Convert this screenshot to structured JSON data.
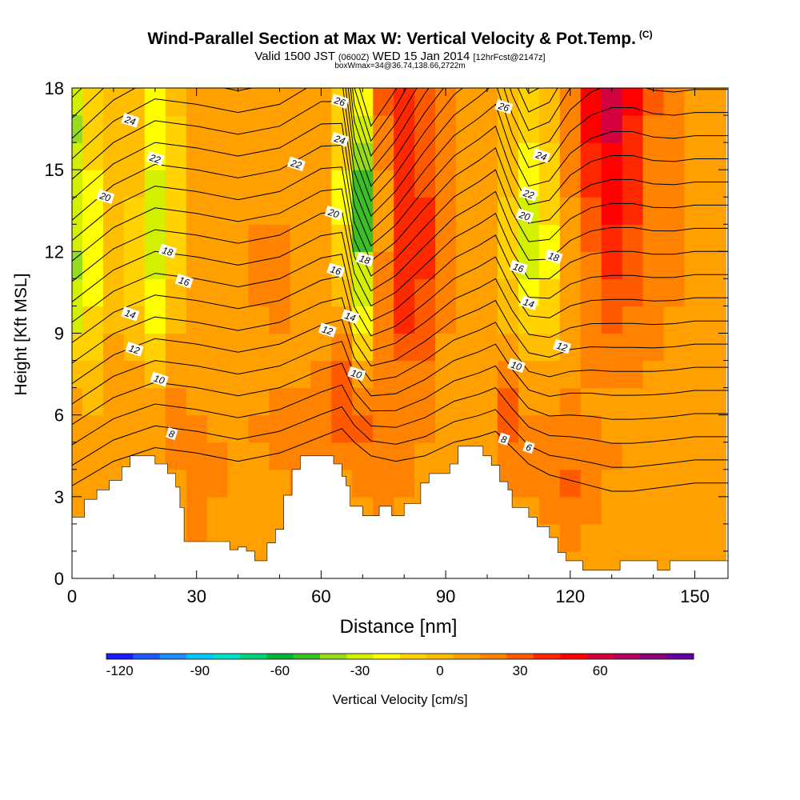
{
  "header": {
    "title": "Wind-Parallel Section at Max W: Vertical Velocity & Pot.Temp.",
    "title_tag": "(C)",
    "subtitle_main": "Valid 1500 JST",
    "subtitle_utc": "(0600Z)",
    "subtitle_date": "WED 15 Jan 2014",
    "subtitle_fcst": "[12hrFcst@2147z]",
    "subtitle2": "boxWmax=34@36.74,138.66,2722m"
  },
  "chart_data": {
    "type": "heatmap",
    "title": "Wind-Parallel Section at Max W: Vertical Velocity & Pot.Temp.",
    "xlabel": "Distance [nm]",
    "ylabel": "Height [Kft MSL]",
    "xlim": [
      0,
      158
    ],
    "ylim": [
      0,
      18
    ],
    "x_ticks": [
      0,
      30,
      60,
      90,
      120,
      150
    ],
    "x_tick_labels": [
      "0",
      "30",
      "60",
      "90",
      "120",
      "150"
    ],
    "y_ticks": [
      0,
      3,
      6,
      9,
      12,
      15,
      18
    ],
    "y_tick_labels": [
      "0",
      "3",
      "6",
      "9",
      "12",
      "15",
      "18"
    ],
    "colorbar": {
      "label": "Vertical Velocity [cm/s]",
      "min": -125,
      "step": 10,
      "tick_labels": [
        "-120",
        "-90",
        "-60",
        "-30",
        "0",
        "30",
        "60"
      ],
      "tick_values": [
        -120,
        -90,
        -60,
        -30,
        0,
        30,
        60
      ],
      "colors": [
        "#1a1aff",
        "#1e5aff",
        "#1e90ff",
        "#00c8ff",
        "#00e0c8",
        "#00d27a",
        "#00b43c",
        "#3cbe28",
        "#96dc1e",
        "#d2f000",
        "#ffff00",
        "#ffd200",
        "#ffbe00",
        "#ffa000",
        "#ff8200",
        "#ff5a00",
        "#ff2800",
        "#ff0000",
        "#d2003c",
        "#b4005a",
        "#8c0078",
        "#6400a0"
      ]
    },
    "terrain_kft": [
      [
        0,
        2.25
      ],
      [
        3,
        2.25
      ],
      [
        3,
        2.9
      ],
      [
        6,
        2.9
      ],
      [
        6,
        3.25
      ],
      [
        9,
        3.25
      ],
      [
        9,
        3.6
      ],
      [
        12,
        3.6
      ],
      [
        12,
        4.1
      ],
      [
        14,
        4.1
      ],
      [
        14,
        4.5
      ],
      [
        20,
        4.5
      ],
      [
        20,
        4.2
      ],
      [
        23,
        4.2
      ],
      [
        23,
        3.85
      ],
      [
        25,
        3.85
      ],
      [
        25,
        3.35
      ],
      [
        26,
        3.35
      ],
      [
        26,
        2.6
      ],
      [
        27,
        2.6
      ],
      [
        27,
        1.35
      ],
      [
        38,
        1.35
      ],
      [
        38,
        1.05
      ],
      [
        40,
        1.05
      ],
      [
        40,
        1.15
      ],
      [
        42,
        1.15
      ],
      [
        42,
        1.0
      ],
      [
        44,
        1.0
      ],
      [
        44,
        0.65
      ],
      [
        47,
        0.65
      ],
      [
        47,
        1.3
      ],
      [
        49,
        1.3
      ],
      [
        49,
        1.8
      ],
      [
        51,
        1.8
      ],
      [
        51,
        3.05
      ],
      [
        53,
        3.05
      ],
      [
        53,
        4.0
      ],
      [
        55,
        4.0
      ],
      [
        55,
        4.5
      ],
      [
        63,
        4.5
      ],
      [
        63,
        4.2
      ],
      [
        65,
        4.2
      ],
      [
        65,
        3.75
      ],
      [
        66,
        3.75
      ],
      [
        66,
        3.4
      ],
      [
        67,
        3.4
      ],
      [
        67,
        2.65
      ],
      [
        70,
        2.65
      ],
      [
        70,
        2.3
      ],
      [
        74,
        2.3
      ],
      [
        74,
        2.65
      ],
      [
        77,
        2.65
      ],
      [
        77,
        2.3
      ],
      [
        80,
        2.3
      ],
      [
        80,
        2.75
      ],
      [
        84,
        2.75
      ],
      [
        84,
        3.5
      ],
      [
        86,
        3.5
      ],
      [
        86,
        3.85
      ],
      [
        91,
        3.85
      ],
      [
        91,
        4.2
      ],
      [
        93,
        4.2
      ],
      [
        93,
        4.85
      ],
      [
        99,
        4.85
      ],
      [
        99,
        4.5
      ],
      [
        101,
        4.5
      ],
      [
        101,
        4.15
      ],
      [
        103,
        4.15
      ],
      [
        103,
        3.55
      ],
      [
        105,
        3.55
      ],
      [
        105,
        3.25
      ],
      [
        106,
        3.25
      ],
      [
        106,
        2.6
      ],
      [
        110,
        2.6
      ],
      [
        110,
        2.25
      ],
      [
        112,
        2.25
      ],
      [
        112,
        1.9
      ],
      [
        115,
        1.9
      ],
      [
        115,
        1.5
      ],
      [
        117,
        1.5
      ],
      [
        117,
        0.95
      ],
      [
        119,
        0.95
      ],
      [
        119,
        0.65
      ],
      [
        123,
        0.65
      ],
      [
        123,
        0.3
      ],
      [
        132,
        0.3
      ],
      [
        132,
        0.65
      ],
      [
        141,
        0.65
      ],
      [
        141,
        0.3
      ],
      [
        144,
        0.3
      ],
      [
        144,
        0.65
      ],
      [
        158,
        0.65
      ]
    ],
    "w_cells": {
      "x_centers": [
        0,
        5,
        10,
        15,
        20,
        25,
        30,
        35,
        40,
        45,
        50,
        55,
        60,
        65,
        70,
        75,
        80,
        85,
        90,
        95,
        100,
        105,
        110,
        115,
        120,
        125,
        130,
        135,
        140,
        145,
        150,
        155
      ],
      "z_centers": [
        0.5,
        1.5,
        2.5,
        3.5,
        4.5,
        5.5,
        6.5,
        7.5,
        8.5,
        9.5,
        10.5,
        11.5,
        12.5,
        13.5,
        14.5,
        15.5,
        16.5,
        17.5
      ],
      "rows": [
        [
          8,
          8,
          8,
          8,
          8,
          8,
          8,
          8,
          8,
          8,
          8,
          8,
          8,
          8,
          8,
          8,
          8,
          8,
          8,
          8,
          8,
          8,
          8,
          8,
          8,
          8,
          8,
          8,
          5,
          5,
          8,
          8
        ],
        [
          10,
          10,
          10,
          10,
          10,
          10,
          15,
          12,
          10,
          10,
          10,
          10,
          10,
          10,
          10,
          10,
          10,
          10,
          10,
          10,
          10,
          10,
          10,
          12,
          15,
          12,
          10,
          10,
          5,
          5,
          8,
          8
        ],
        [
          10,
          10,
          12,
          10,
          10,
          10,
          15,
          12,
          10,
          10,
          10,
          12,
          10,
          10,
          12,
          15,
          12,
          10,
          10,
          10,
          10,
          10,
          12,
          15,
          20,
          15,
          12,
          10,
          8,
          8,
          10,
          10
        ],
        [
          10,
          10,
          12,
          10,
          10,
          12,
          15,
          15,
          12,
          10,
          12,
          15,
          12,
          10,
          15,
          20,
          15,
          10,
          10,
          10,
          10,
          15,
          15,
          22,
          25,
          20,
          12,
          10,
          10,
          10,
          12,
          10
        ],
        [
          12,
          10,
          12,
          10,
          10,
          18,
          18,
          15,
          12,
          12,
          15,
          18,
          15,
          15,
          20,
          20,
          15,
          12,
          12,
          10,
          10,
          20,
          18,
          20,
          22,
          18,
          15,
          12,
          10,
          10,
          12,
          10
        ],
        [
          10,
          8,
          12,
          10,
          8,
          20,
          15,
          12,
          12,
          15,
          18,
          18,
          18,
          25,
          25,
          18,
          15,
          15,
          12,
          10,
          10,
          25,
          15,
          15,
          18,
          15,
          12,
          12,
          10,
          10,
          10,
          10
        ],
        [
          5,
          3,
          10,
          8,
          5,
          15,
          12,
          10,
          10,
          12,
          15,
          15,
          18,
          30,
          20,
          15,
          15,
          15,
          12,
          10,
          8,
          25,
          12,
          12,
          15,
          12,
          12,
          12,
          10,
          10,
          10,
          10
        ],
        [
          0,
          -5,
          8,
          5,
          0,
          10,
          10,
          10,
          10,
          12,
          12,
          12,
          15,
          30,
          5,
          15,
          20,
          20,
          12,
          10,
          5,
          20,
          5,
          5,
          12,
          15,
          15,
          15,
          12,
          12,
          12,
          12
        ],
        [
          -15,
          -10,
          5,
          0,
          -10,
          5,
          8,
          10,
          10,
          12,
          12,
          12,
          10,
          20,
          -15,
          20,
          30,
          25,
          12,
          8,
          5,
          10,
          -5,
          0,
          10,
          15,
          20,
          20,
          15,
          12,
          12,
          12
        ],
        [
          -30,
          -15,
          0,
          -5,
          -20,
          0,
          5,
          10,
          10,
          12,
          15,
          12,
          5,
          5,
          -25,
          15,
          35,
          30,
          15,
          10,
          5,
          0,
          -15,
          -10,
          8,
          18,
          25,
          22,
          18,
          12,
          12,
          12
        ],
        [
          -35,
          -20,
          -5,
          -10,
          -25,
          -5,
          5,
          10,
          12,
          15,
          20,
          12,
          5,
          -5,
          -30,
          15,
          35,
          30,
          15,
          10,
          5,
          -5,
          -25,
          -15,
          5,
          20,
          30,
          25,
          20,
          15,
          12,
          12
        ],
        [
          -40,
          -25,
          -5,
          -10,
          -30,
          -10,
          5,
          10,
          12,
          15,
          20,
          12,
          5,
          -10,
          -35,
          15,
          40,
          35,
          15,
          10,
          5,
          -10,
          -30,
          -20,
          5,
          22,
          35,
          28,
          20,
          15,
          12,
          12
        ],
        [
          -35,
          -25,
          -5,
          -10,
          -35,
          -15,
          5,
          10,
          12,
          15,
          15,
          12,
          5,
          -15,
          -50,
          10,
          40,
          35,
          15,
          10,
          5,
          -10,
          -35,
          -20,
          5,
          25,
          40,
          30,
          20,
          15,
          12,
          12
        ],
        [
          -30,
          -20,
          -5,
          -10,
          -35,
          -15,
          5,
          10,
          12,
          12,
          12,
          12,
          5,
          -20,
          -55,
          10,
          35,
          35,
          15,
          10,
          5,
          -10,
          -30,
          -15,
          10,
          30,
          45,
          35,
          20,
          15,
          12,
          10
        ],
        [
          -30,
          -20,
          -5,
          -5,
          -30,
          -10,
          5,
          10,
          12,
          12,
          12,
          12,
          5,
          -20,
          -50,
          10,
          35,
          30,
          15,
          10,
          5,
          -5,
          -25,
          -10,
          15,
          35,
          45,
          35,
          20,
          15,
          10,
          10
        ],
        [
          -35,
          -15,
          0,
          -5,
          -25,
          -10,
          5,
          10,
          10,
          12,
          12,
          10,
          5,
          -15,
          -40,
          15,
          35,
          30,
          15,
          10,
          5,
          -5,
          -20,
          -10,
          15,
          40,
          50,
          35,
          20,
          15,
          10,
          10
        ],
        [
          -40,
          -15,
          0,
          -5,
          -25,
          -10,
          5,
          10,
          10,
          10,
          10,
          10,
          5,
          -10,
          -35,
          20,
          40,
          30,
          15,
          10,
          5,
          0,
          -15,
          -5,
          15,
          45,
          60,
          40,
          20,
          15,
          10,
          10
        ],
        [
          -35,
          -10,
          0,
          0,
          -20,
          -5,
          5,
          10,
          10,
          10,
          10,
          10,
          5,
          -15,
          -20,
          25,
          40,
          30,
          15,
          10,
          5,
          0,
          -10,
          0,
          20,
          50,
          60,
          45,
          25,
          15,
          10,
          10
        ]
      ]
    },
    "theta_contours": {
      "label": "Pot.Temp.",
      "levels": [
        4,
        5,
        6,
        7,
        8,
        9,
        10,
        11,
        12,
        13,
        14,
        15,
        16,
        17,
        18,
        19,
        20,
        21,
        22,
        23,
        24,
        25,
        26
      ],
      "x": [
        0,
        10,
        20,
        30,
        40,
        50,
        60,
        65,
        68,
        72,
        78,
        85,
        92,
        98,
        102,
        106,
        110,
        115,
        120,
        125,
        130,
        135,
        140,
        145,
        150,
        158
      ],
      "bottom_kft": [
        3.4,
        4.3,
        4.8,
        4.6,
        4.3,
        4.6,
        5.2,
        5.5,
        5.0,
        4.5,
        4.3,
        4.5,
        5.0,
        5.2,
        5.4,
        4.8,
        4.2,
        3.8,
        3.6,
        3.4,
        3.2,
        3.2,
        3.3,
        3.4,
        3.5,
        3.5
      ],
      "spacing_kft": [
        0.75,
        0.78,
        0.8,
        0.8,
        0.8,
        0.8,
        0.82,
        0.8,
        0.62,
        0.55,
        0.62,
        0.7,
        0.75,
        0.78,
        0.8,
        0.72,
        0.68,
        0.72,
        0.8,
        0.85,
        0.88,
        0.88,
        0.86,
        0.85,
        0.85,
        0.85
      ],
      "labels": [
        {
          "text": "24",
          "x": 14,
          "z": 16.8
        },
        {
          "text": "22",
          "x": 20,
          "z": 15.4
        },
        {
          "text": "20",
          "x": 8,
          "z": 14.0
        },
        {
          "text": "18",
          "x": 23,
          "z": 12.0
        },
        {
          "text": "16",
          "x": 27,
          "z": 10.9
        },
        {
          "text": "14",
          "x": 14,
          "z": 9.7
        },
        {
          "text": "12",
          "x": 15,
          "z": 8.4
        },
        {
          "text": "10",
          "x": 21,
          "z": 7.3
        },
        {
          "text": "8",
          "x": 24,
          "z": 5.3
        },
        {
          "text": "26",
          "x": 64.5,
          "z": 17.5
        },
        {
          "text": "24",
          "x": 64.5,
          "z": 16.1
        },
        {
          "text": "22",
          "x": 54,
          "z": 15.2
        },
        {
          "text": "20",
          "x": 63,
          "z": 13.4
        },
        {
          "text": "18",
          "x": 70.5,
          "z": 11.7
        },
        {
          "text": "16",
          "x": 63.5,
          "z": 11.3
        },
        {
          "text": "14",
          "x": 67,
          "z": 9.6
        },
        {
          "text": "12",
          "x": 61.5,
          "z": 9.1
        },
        {
          "text": "10",
          "x": 68.5,
          "z": 7.5
        },
        {
          "text": "26",
          "x": 104,
          "z": 17.3
        },
        {
          "text": "24",
          "x": 113,
          "z": 15.5
        },
        {
          "text": "22",
          "x": 110,
          "z": 14.1
        },
        {
          "text": "20",
          "x": 109,
          "z": 13.3
        },
        {
          "text": "18",
          "x": 116,
          "z": 11.8
        },
        {
          "text": "16",
          "x": 107.5,
          "z": 11.4
        },
        {
          "text": "14",
          "x": 110,
          "z": 10.1
        },
        {
          "text": "12",
          "x": 118,
          "z": 8.5
        },
        {
          "text": "10",
          "x": 107,
          "z": 7.8
        },
        {
          "text": "8",
          "x": 104,
          "z": 5.1
        },
        {
          "text": "6",
          "x": 110,
          "z": 4.8
        }
      ]
    }
  }
}
